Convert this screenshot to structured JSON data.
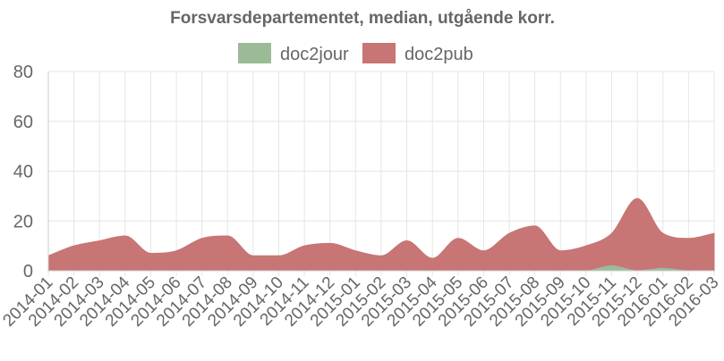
{
  "chart_data": {
    "type": "area",
    "title": "Forsvarsdepartementet, median, utgående korr.",
    "xlabel": "",
    "ylabel": "",
    "ylim": [
      0,
      80
    ],
    "yticks": [
      0,
      20,
      40,
      60,
      80
    ],
    "grid": true,
    "legend_position": "top",
    "categories": [
      "2014-01",
      "2014-02",
      "2014-03",
      "2014-04",
      "2014-05",
      "2014-06",
      "2014-07",
      "2014-08",
      "2014-09",
      "2014-10",
      "2014-11",
      "2014-12",
      "2015-01",
      "2015-02",
      "2015-03",
      "2015-04",
      "2015-05",
      "2015-06",
      "2015-07",
      "2015-08",
      "2015-09",
      "2015-10",
      "2015-11",
      "2015-12",
      "2016-01",
      "2016-02",
      "2016-03"
    ],
    "series": [
      {
        "name": "doc2jour",
        "color": "#9bbb97",
        "values": [
          0,
          0,
          0,
          0,
          0,
          0,
          0,
          0,
          0,
          0,
          0,
          0,
          0,
          0,
          0,
          0,
          0,
          0,
          0,
          0,
          0,
          0,
          2,
          0,
          1,
          0,
          0
        ]
      },
      {
        "name": "doc2pub",
        "color": "#c87575",
        "values": [
          6,
          10,
          12,
          14,
          7,
          8,
          13,
          14,
          6,
          6,
          10,
          11,
          8,
          6,
          12,
          5,
          13,
          8,
          15,
          18,
          8,
          10,
          15,
          29,
          15,
          13,
          15
        ]
      }
    ]
  }
}
